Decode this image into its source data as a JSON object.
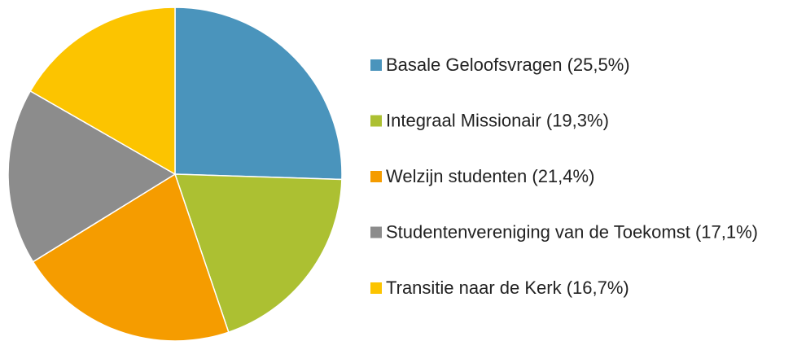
{
  "chart_data": {
    "type": "pie",
    "categories": [
      "Basale Geloofsvragen (25,5%)",
      "Integraal Missionair (19,3%)",
      "Welzijn studenten (21,4%)",
      "Studentenvereniging van de Toekomst (17,1%)",
      "Transitie naar de Kerk (16,7%)"
    ],
    "values": [
      25.5,
      19.3,
      21.4,
      17.1,
      16.7
    ],
    "colors": [
      "#4a94bc",
      "#acc032",
      "#f59c00",
      "#8c8c8c",
      "#fcc400"
    ],
    "legend": "right"
  }
}
